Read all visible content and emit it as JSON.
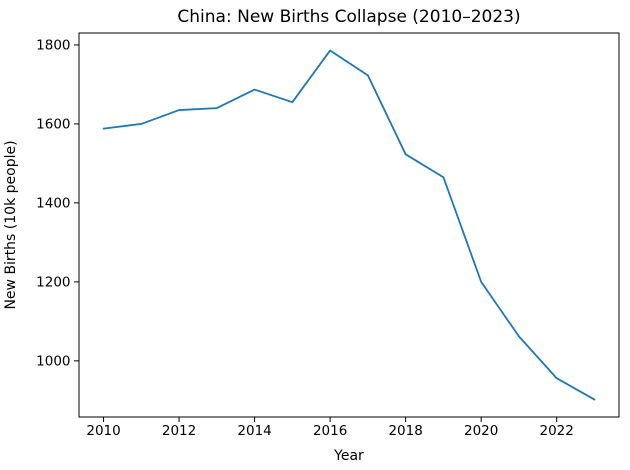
{
  "figure": {
    "background": "#ffffff"
  },
  "chart_data": {
    "type": "line",
    "title": "China: New Births Collapse (2010–2023)",
    "xlabel": "Year",
    "ylabel": "New Births (10k people)",
    "x": [
      2010,
      2011,
      2012,
      2013,
      2014,
      2015,
      2016,
      2017,
      2018,
      2019,
      2020,
      2021,
      2022,
      2023
    ],
    "series": [
      {
        "name": "New Births (10k people)",
        "values": [
          1588,
          1600,
          1635,
          1640,
          1687,
          1655,
          1786,
          1723,
          1523,
          1465,
          1200,
          1062,
          956,
          902
        ]
      }
    ],
    "xticks": [
      2010,
      2012,
      2014,
      2016,
      2018,
      2020,
      2022
    ],
    "yticks": [
      1000,
      1200,
      1400,
      1600,
      1800
    ],
    "xlim": [
      2009.35,
      2023.65
    ],
    "ylim": [
      857.8,
      1830.2
    ],
    "grid": false,
    "legend": "none",
    "line_color": "#1f77b4",
    "line_width": 1.8,
    "spine_color": "#000000",
    "text_color": "#000000"
  }
}
